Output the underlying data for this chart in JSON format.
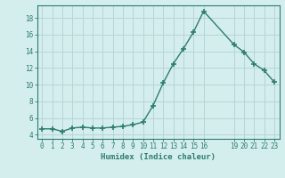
{
  "x": [
    0,
    1,
    2,
    3,
    4,
    5,
    6,
    7,
    8,
    9,
    10,
    11,
    12,
    13,
    14,
    15,
    16,
    19,
    20,
    21,
    22,
    23
  ],
  "y": [
    4.7,
    4.7,
    4.4,
    4.8,
    4.9,
    4.8,
    4.8,
    4.9,
    5.0,
    5.2,
    5.5,
    7.5,
    10.2,
    12.5,
    14.3,
    16.3,
    18.8,
    14.8,
    13.9,
    12.5,
    11.7,
    10.3
  ],
  "line_color": "#2d7d6e",
  "marker": "+",
  "marker_size": 4,
  "bg_color": "#d4eeee",
  "grid_color": "#b8d4d4",
  "xlabel": "Humidex (Indice chaleur)",
  "xlim": [
    -0.5,
    23.5
  ],
  "ylim": [
    3.5,
    19.5
  ],
  "xticks": [
    0,
    1,
    2,
    3,
    4,
    5,
    6,
    7,
    8,
    9,
    10,
    11,
    12,
    13,
    14,
    15,
    16,
    19,
    20,
    21,
    22,
    23
  ],
  "yticks": [
    4,
    6,
    8,
    10,
    12,
    14,
    16,
    18
  ],
  "font_color": "#2d7d6e",
  "line_width": 1.0,
  "tick_fontsize": 5.5,
  "xlabel_fontsize": 6.5
}
